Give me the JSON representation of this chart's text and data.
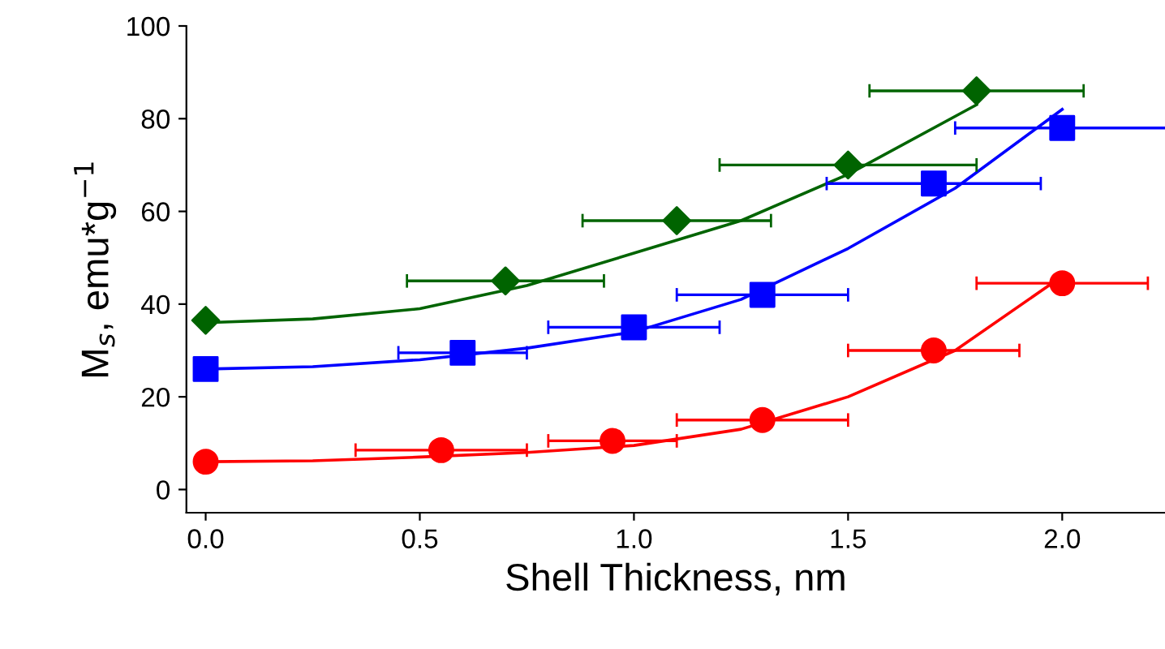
{
  "chart_data": {
    "type": "scatter",
    "xlabel": "Shell Thickness, nm",
    "ylabel": "M$_{s}$, emu*g$^{−1}$",
    "xlim": [
      -0.045,
      2.24
    ],
    "ylim": [
      -5,
      100
    ],
    "xticks": [
      {
        "value": 0,
        "label": "0.0"
      },
      {
        "value": 0.5,
        "label": "0.5"
      },
      {
        "value": 1,
        "label": "1.0"
      },
      {
        "value": 1.5,
        "label": "1.5"
      },
      {
        "value": 2,
        "label": "2.0"
      }
    ],
    "yticks": [
      0,
      20,
      40,
      60,
      80,
      100
    ],
    "grid": false,
    "legend": false,
    "series": [
      {
        "type": "line",
        "color": "#ff0000",
        "marker": "none",
        "x": [
          0,
          0.25,
          0.5,
          0.75,
          1.0,
          1.25,
          1.5,
          1.75,
          2.0
        ],
        "values": [
          6,
          6.2,
          7,
          8,
          9.5,
          13,
          20,
          30,
          46
        ]
      },
      {
        "type": "line",
        "color": "#0000ff",
        "marker": "none",
        "x": [
          0,
          0.25,
          0.5,
          0.75,
          1.0,
          1.25,
          1.5,
          1.75,
          2.0
        ],
        "values": [
          26,
          26.5,
          28,
          30.5,
          34,
          41,
          52,
          65,
          82
        ]
      },
      {
        "type": "line",
        "color": "#006400",
        "marker": "none",
        "x": [
          0,
          0.25,
          0.5,
          0.75,
          1.0,
          1.25,
          1.5,
          1.8
        ],
        "values": [
          36,
          36.8,
          39,
          44,
          51,
          58,
          68,
          83
        ]
      },
      {
        "color": "#ff0000",
        "marker": "circle",
        "x": [
          0,
          0.55,
          0.95,
          1.3,
          1.7,
          2.0
        ],
        "values": [
          6,
          8.5,
          10.5,
          15,
          30,
          44.5
        ],
        "xerrors": [
          null,
          0.2,
          0.15,
          0.2,
          0.2,
          0.2
        ]
      },
      {
        "color": "#0000ff",
        "marker": "square",
        "x": [
          0,
          0.6,
          1.0,
          1.3,
          1.7,
          2.0
        ],
        "values": [
          26,
          29.5,
          35,
          42,
          66,
          78
        ],
        "xerrors": [
          null,
          0.15,
          0.2,
          0.2,
          0.25,
          0.25
        ]
      },
      {
        "color": "#006400",
        "marker": "diamond",
        "x": [
          0,
          0.7,
          1.1,
          1.5,
          1.8
        ],
        "values": [
          36.5,
          45,
          58,
          70,
          86
        ],
        "xerrors": [
          null,
          0.23,
          0.22,
          0.3,
          0.25
        ]
      }
    ]
  }
}
